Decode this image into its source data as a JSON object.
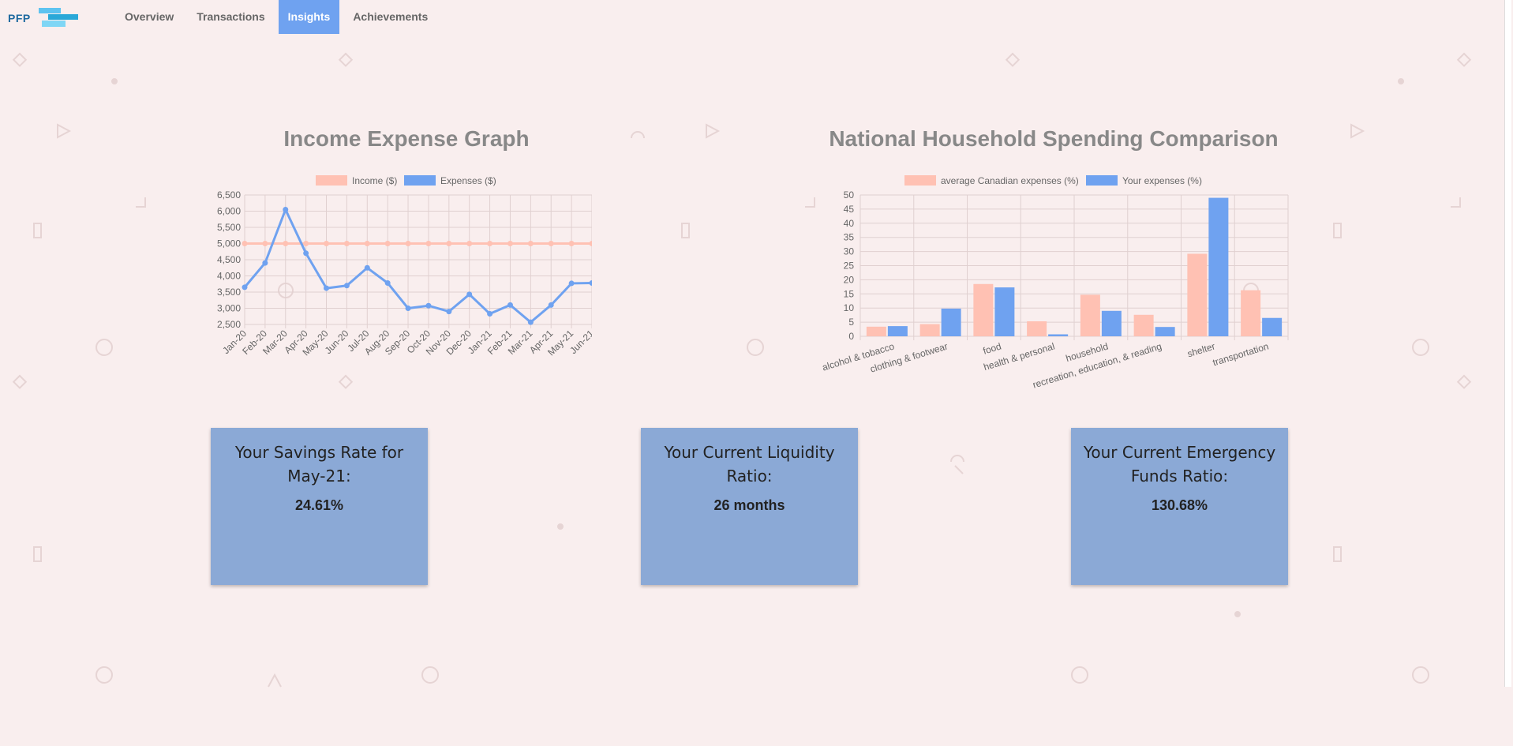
{
  "app": {
    "logo_text": "PFP"
  },
  "nav": {
    "items": [
      {
        "label": "Overview",
        "active": false
      },
      {
        "label": "Transactions",
        "active": false
      },
      {
        "label": "Insights",
        "active": true
      },
      {
        "label": "Achievements",
        "active": false
      }
    ]
  },
  "colors": {
    "income": "#ffc1b3",
    "expenses": "#6fa2f0",
    "card": "#8ba9d6",
    "nav_active": "#6fa2f0"
  },
  "income_chart": {
    "title": "Income Expense Graph",
    "chart_data": {
      "type": "line",
      "x": [
        "Jan-20",
        "Feb-20",
        "Mar-20",
        "Apr-20",
        "May-20",
        "Jun-20",
        "Jul-20",
        "Aug-20",
        "Sep-20",
        "Oct-20",
        "Nov-20",
        "Dec-20",
        "Jan-21",
        "Feb-21",
        "Mar-21",
        "Apr-21",
        "May-21",
        "Jun-21"
      ],
      "series": [
        {
          "name": "Income ($)",
          "values": [
            5000,
            5000,
            5000,
            5000,
            5000,
            5000,
            5000,
            5000,
            5000,
            5000,
            5000,
            5000,
            5000,
            5000,
            5000,
            5000,
            5000,
            5000
          ]
        },
        {
          "name": "Expenses ($)",
          "values": [
            3650,
            4400,
            6050,
            4700,
            3620,
            3700,
            4250,
            3780,
            3000,
            3080,
            2900,
            3430,
            2830,
            3100,
            2570,
            3100,
            3770,
            3780
          ]
        }
      ],
      "ylim": [
        2500,
        6500
      ],
      "yticks": [
        "6,500",
        "6,000",
        "5,500",
        "5,000",
        "4,500",
        "4,000",
        "3,500",
        "3,000",
        "2,500"
      ],
      "grid": true,
      "legend": "top"
    }
  },
  "spending_chart": {
    "title": "National Household Spending Comparison",
    "chart_data": {
      "type": "bar",
      "categories": [
        "alcohol & tobacco",
        "clothing & footwear",
        "food",
        "health & personal",
        "household",
        "recreation, education, & reading",
        "shelter",
        "transportation"
      ],
      "series": [
        {
          "name": "average Canadian expenses (%)",
          "values": [
            3.4,
            4.3,
            18.5,
            5.3,
            14.7,
            7.6,
            29.2,
            16.3
          ]
        },
        {
          "name": "Your expenses (%)",
          "values": [
            3.6,
            9.8,
            17.3,
            0.7,
            9.0,
            3.3,
            49.0,
            6.5
          ]
        }
      ],
      "ylim": [
        0,
        50
      ],
      "yticks": [
        "50",
        "45",
        "40",
        "35",
        "30",
        "25",
        "20",
        "15",
        "10",
        "5",
        "0"
      ],
      "grid": true,
      "legend": "top"
    }
  },
  "cards": [
    {
      "title": "Your Savings Rate for May-21:",
      "value": "24.61%"
    },
    {
      "title": "Your Current Liquidity Ratio:",
      "value": "26 months"
    },
    {
      "title": "Your Current Emergency Funds Ratio:",
      "value": "130.68%"
    }
  ]
}
